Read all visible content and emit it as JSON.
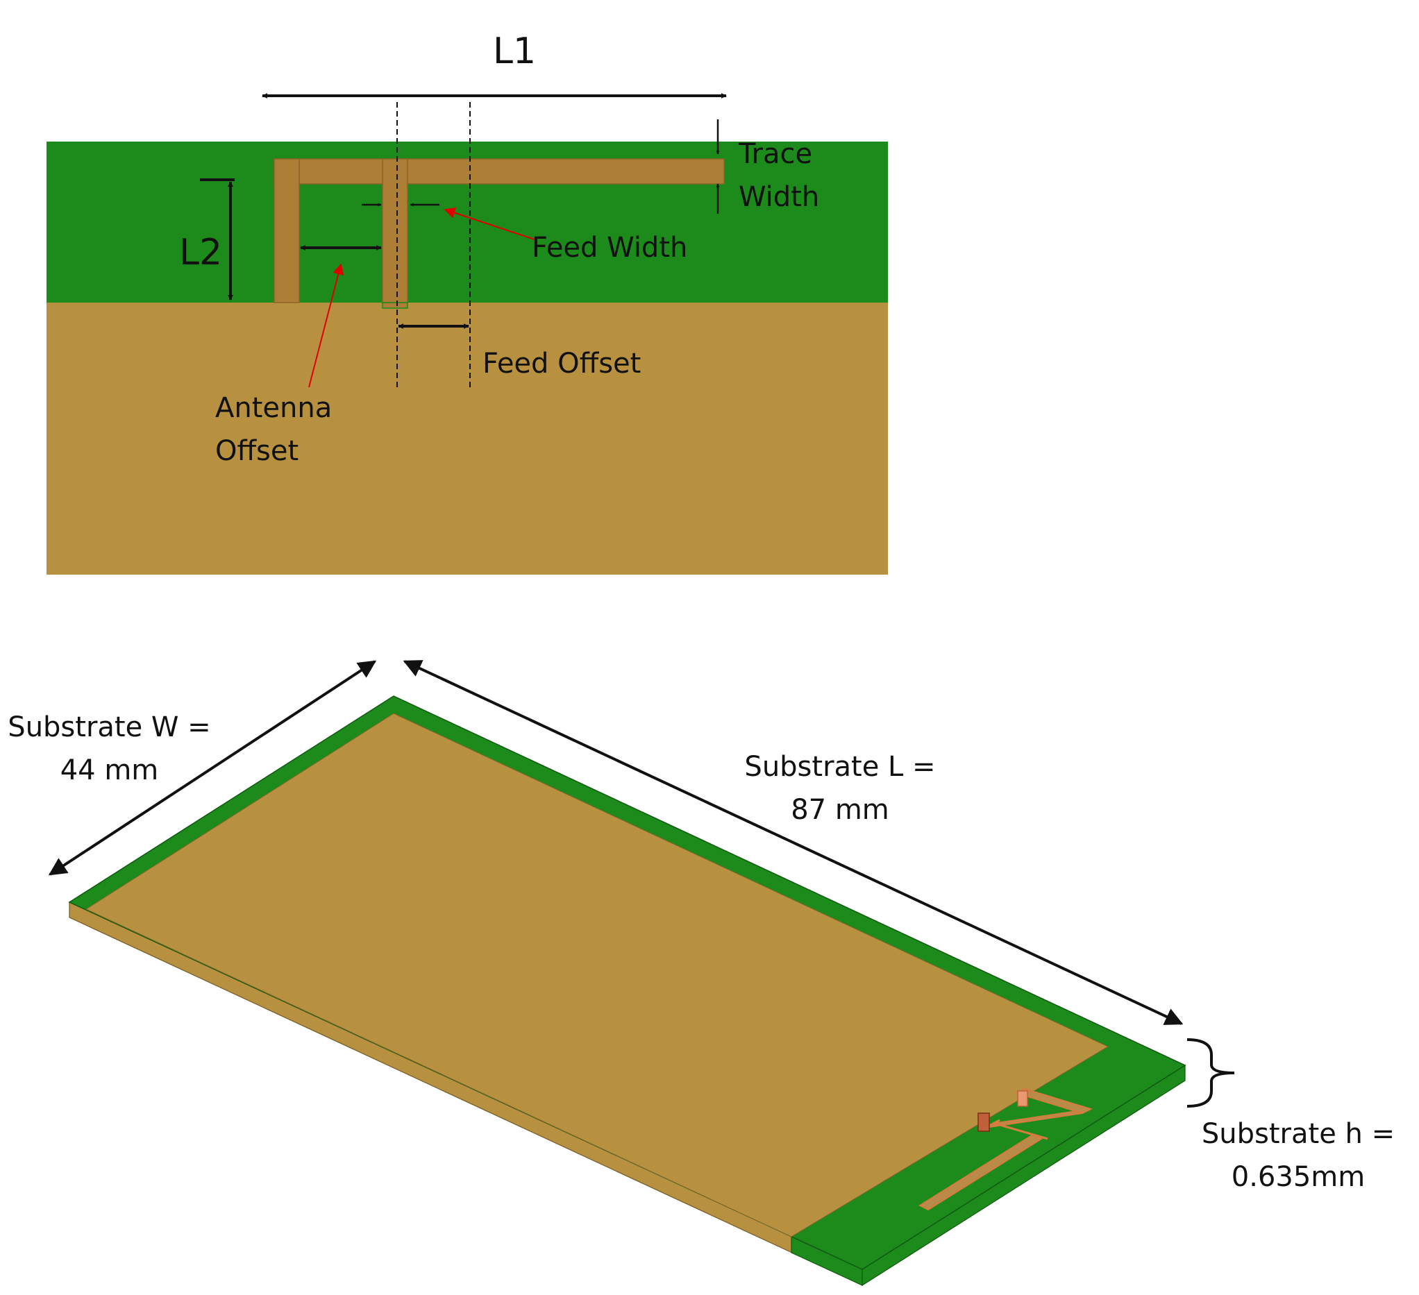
{
  "colors": {
    "green": "#1c8b1c",
    "copper": "#b79140",
    "trace": "#ad7f36",
    "red": "#e00000",
    "black": "#111111",
    "feed_port": "#d9673a"
  },
  "labels": {
    "L1": "L1",
    "L2": "L2",
    "trace_width_line1": "Trace",
    "trace_width_line2": "Width",
    "feed_width": "Feed Width",
    "feed_offset": "Feed Offset",
    "antenna_offset_line1": "Antenna",
    "antenna_offset_line2": "Offset",
    "substrate_w_line1": "Substrate W =",
    "substrate_w_line2": "44 mm",
    "substrate_l_line1": "Substrate L =",
    "substrate_l_line2": "87 mm",
    "substrate_h_line1": "Substrate h =",
    "substrate_h_line2": "0.635mm"
  }
}
